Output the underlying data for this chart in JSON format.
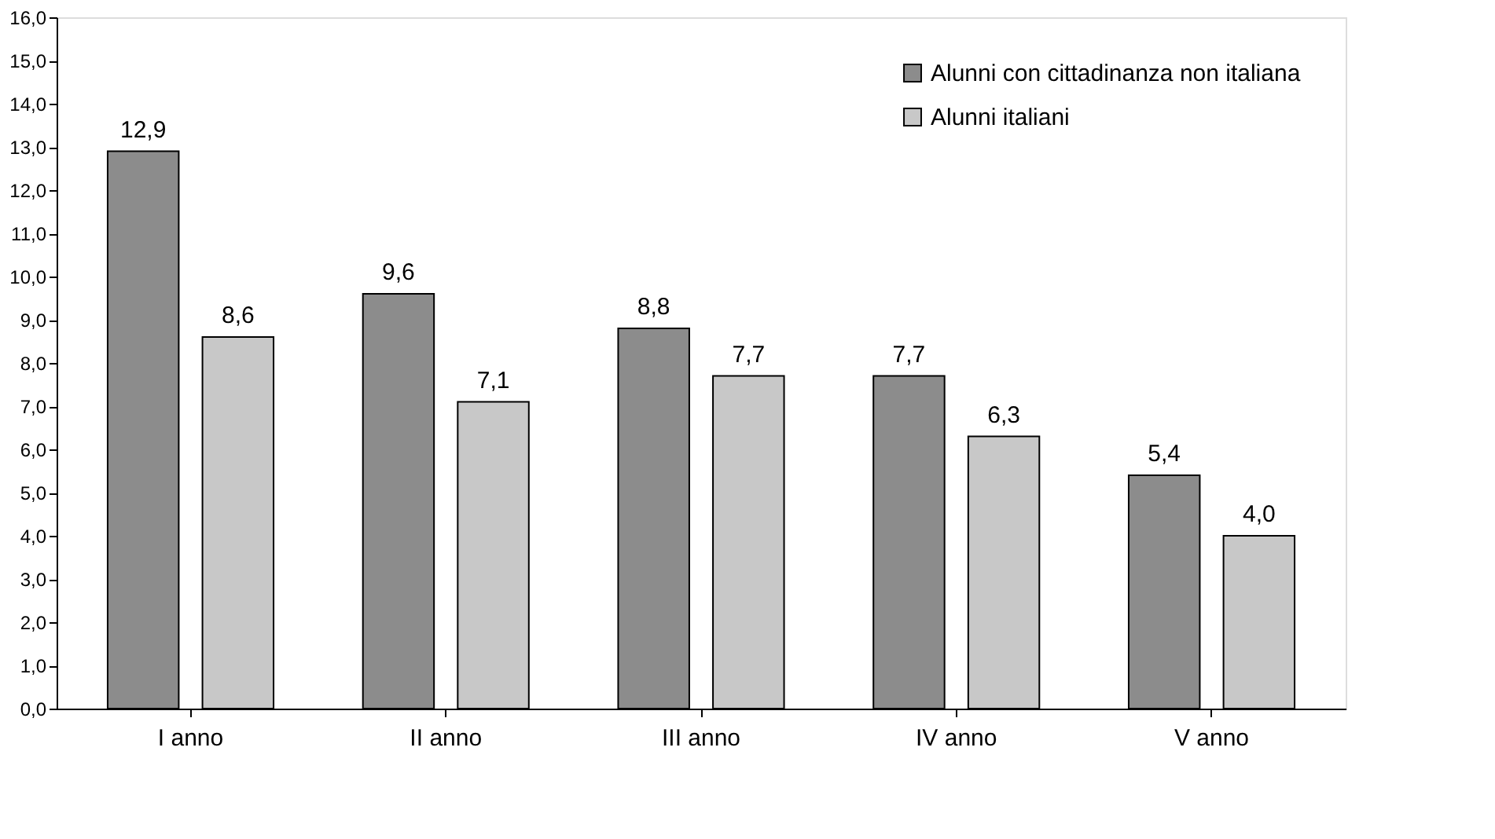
{
  "chart_data": {
    "type": "bar",
    "categories": [
      "I anno",
      "II anno",
      "III anno",
      "IV anno",
      "V anno"
    ],
    "series": [
      {
        "name": "Alunni con cittadinanza non italiana",
        "color": "#8c8c8c",
        "values": [
          12.9,
          9.6,
          8.8,
          7.7,
          5.4
        ],
        "value_labels": [
          "12,9",
          "9,6",
          "8,8",
          "7,7",
          "5,4"
        ]
      },
      {
        "name": "Alunni italiani",
        "color": "#c8c8c8",
        "values": [
          8.6,
          7.1,
          7.7,
          6.3,
          4.0
        ],
        "value_labels": [
          "8,6",
          "7,1",
          "7,7",
          "6,3",
          "4,0"
        ]
      }
    ],
    "ylim": [
      0,
      16
    ],
    "yticks": [
      {
        "value": 0,
        "label": "0,0"
      },
      {
        "value": 1,
        "label": "1,0"
      },
      {
        "value": 2,
        "label": "2,0"
      },
      {
        "value": 3,
        "label": "3,0"
      },
      {
        "value": 4,
        "label": "4,0"
      },
      {
        "value": 5,
        "label": "5,0"
      },
      {
        "value": 6,
        "label": "6,0"
      },
      {
        "value": 7,
        "label": "7,0"
      },
      {
        "value": 8,
        "label": "8,0"
      },
      {
        "value": 9,
        "label": "9,0"
      },
      {
        "value": 10,
        "label": "10,0"
      },
      {
        "value": 11,
        "label": "11,0"
      },
      {
        "value": 12,
        "label": "12,0"
      },
      {
        "value": 13,
        "label": "13,0"
      },
      {
        "value": 14,
        "label": "14,0"
      },
      {
        "value": 15,
        "label": "15,0"
      },
      {
        "value": 16,
        "label": "16,0"
      }
    ],
    "grid": false,
    "legend": "top right"
  }
}
